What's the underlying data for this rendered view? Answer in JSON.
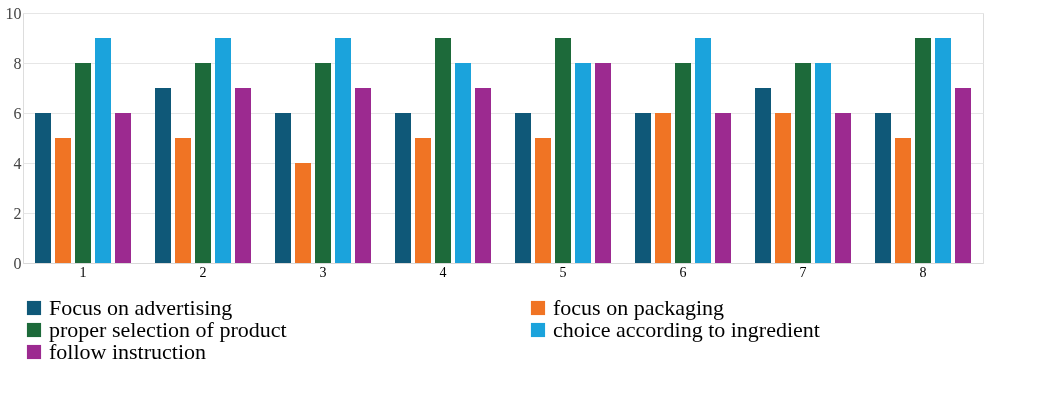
{
  "chart_data": {
    "type": "bar",
    "categories": [
      "1",
      "2",
      "3",
      "4",
      "5",
      "6",
      "7",
      "8"
    ],
    "series": [
      {
        "name": "Focus on advertising",
        "color": "#0f5878",
        "values": [
          6,
          7,
          6,
          6,
          6,
          6,
          7,
          6
        ]
      },
      {
        "name": "focus on packaging",
        "color": "#f07424",
        "values": [
          5,
          5,
          4,
          5,
          5,
          6,
          6,
          5
        ]
      },
      {
        "name": "proper selection of product",
        "color": "#1d6a3a",
        "values": [
          8,
          8,
          8,
          9,
          9,
          8,
          8,
          9
        ]
      },
      {
        "name": "choice according to ingredient",
        "color": "#1ba3dc",
        "values": [
          9,
          9,
          9,
          8,
          8,
          9,
          8,
          9
        ]
      },
      {
        "name": "follow instruction",
        "color": "#9c2a90",
        "values": [
          6,
          7,
          7,
          7,
          8,
          6,
          6,
          7
        ]
      }
    ],
    "ylim": [
      0,
      10
    ],
    "yticks": [
      0,
      2,
      4,
      6,
      8,
      10
    ],
    "grid": "y",
    "legend": "bottom"
  }
}
